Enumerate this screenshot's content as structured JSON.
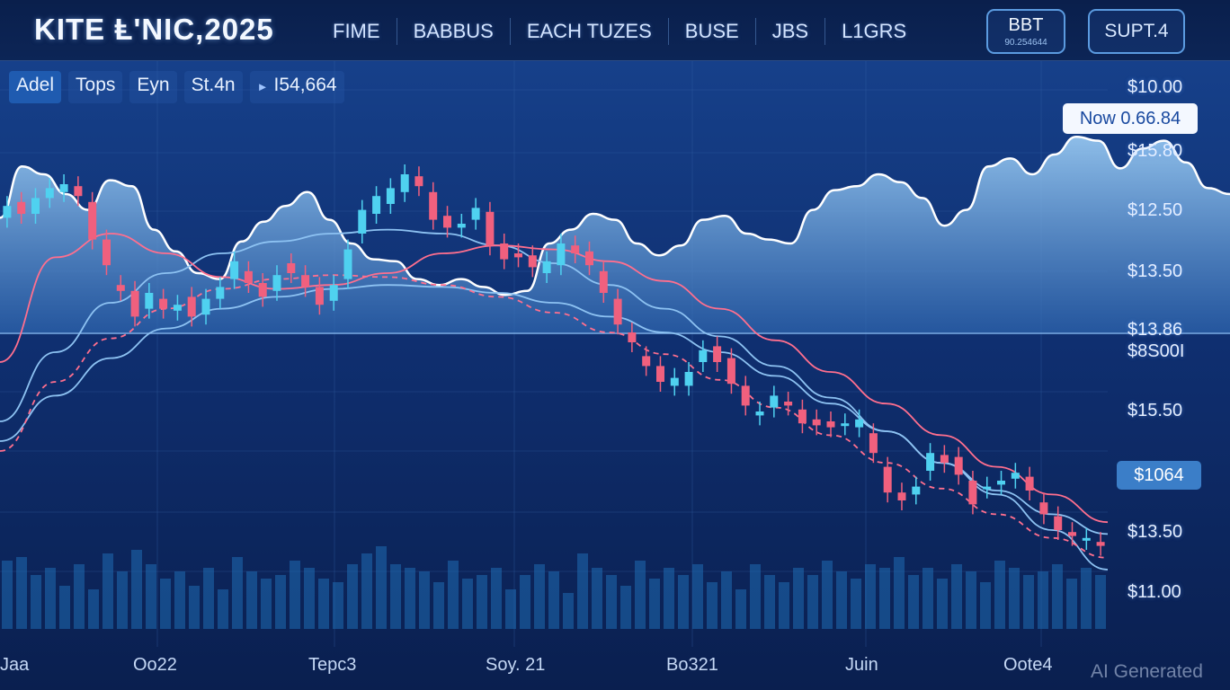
{
  "header": {
    "brand": "KITE Ⱡ'NIC,2025",
    "nav": [
      "FIME",
      "BABBUS",
      "EACH TUZES",
      "BUSE",
      "JBS",
      "L1GRS"
    ],
    "btn_bbt": {
      "label": "BBT",
      "sub": "90.254644"
    },
    "btn_supt": "SUPT.4"
  },
  "toolbar": {
    "timeframes": [
      "Adel",
      "Tops",
      "Eyn",
      "St.4n"
    ],
    "ticker_value": "I54,664"
  },
  "badges": {
    "now": "Now 0.66.84",
    "price": "$1064"
  },
  "watermark": "AI Generated",
  "colors": {
    "background": "#0b2150",
    "up_candle": "#4fd1f0",
    "down_candle": "#f0607e",
    "area_line": "#ffffff",
    "ma_blue": "#8dc2f2",
    "ma_pink": "#ff6f8e",
    "volume": "#1f6cb3"
  },
  "chart_data": {
    "type": "candlestick",
    "title": "",
    "xlabel": "",
    "ylabel": "",
    "y_tick_labels": [
      "$10.00",
      "$15.80",
      "$12.50",
      "$13.50",
      "$13.86",
      "$8S00I",
      "$15.50",
      "$13.50",
      "$11.00"
    ],
    "x_tick_labels": [
      "Jaa",
      "Oo22",
      "Tepc3",
      "Soy. 21",
      "Bo321",
      "Juin",
      "Oote4"
    ],
    "ylim": [
      0,
      100
    ],
    "grid": true,
    "area_series": [
      58,
      84,
      80,
      70,
      62,
      77,
      74,
      52,
      41,
      30,
      27,
      46,
      56,
      64,
      71,
      57,
      45,
      37,
      36,
      27,
      24,
      27,
      23,
      19,
      21,
      45,
      52,
      60,
      57,
      45,
      39,
      44,
      57,
      59,
      50,
      47,
      45,
      62,
      72,
      74,
      80,
      76,
      68,
      54,
      62,
      84,
      88,
      80,
      90,
      99,
      97,
      83,
      93,
      97,
      86,
      73,
      70
    ],
    "candles": [
      {
        "o": 58,
        "c": 64
      },
      {
        "o": 66,
        "c": 60
      },
      {
        "o": 60,
        "c": 68
      },
      {
        "o": 68,
        "c": 73
      },
      {
        "o": 71,
        "c": 75
      },
      {
        "o": 74,
        "c": 69
      },
      {
        "o": 66,
        "c": 47
      },
      {
        "o": 47,
        "c": 34
      },
      {
        "o": 24,
        "c": 21
      },
      {
        "o": 21,
        "c": 8
      },
      {
        "o": 12,
        "c": 20
      },
      {
        "o": 17,
        "c": 12
      },
      {
        "o": 11,
        "c": 14
      },
      {
        "o": 18,
        "c": 8
      },
      {
        "o": 9,
        "c": 17
      },
      {
        "o": 17,
        "c": 23
      },
      {
        "o": 27,
        "c": 36
      },
      {
        "o": 31,
        "c": 25
      },
      {
        "o": 25,
        "c": 18
      },
      {
        "o": 21,
        "c": 29
      },
      {
        "o": 35,
        "c": 30
      },
      {
        "o": 29,
        "c": 23
      },
      {
        "o": 23,
        "c": 14
      },
      {
        "o": 16,
        "c": 24
      },
      {
        "o": 27,
        "c": 42
      },
      {
        "o": 50,
        "c": 62
      },
      {
        "o": 60,
        "c": 69
      },
      {
        "o": 65,
        "c": 73
      },
      {
        "o": 71,
        "c": 80
      },
      {
        "o": 79,
        "c": 74
      },
      {
        "o": 71,
        "c": 57
      },
      {
        "o": 59,
        "c": 53
      },
      {
        "o": 53,
        "c": 55
      },
      {
        "o": 57,
        "c": 63
      },
      {
        "o": 61,
        "c": 44
      },
      {
        "o": 45,
        "c": 37
      },
      {
        "o": 40,
        "c": 38
      },
      {
        "o": 39,
        "c": 33
      },
      {
        "o": 30,
        "c": 36
      },
      {
        "o": 34,
        "c": 45
      },
      {
        "o": 44,
        "c": 40
      },
      {
        "o": 41,
        "c": 34
      },
      {
        "o": 31,
        "c": 20
      },
      {
        "o": 17,
        "c": 4
      },
      {
        "o": 0,
        "c": -5
      },
      {
        "o": -12,
        "c": -17
      },
      {
        "o": -17,
        "c": -25
      },
      {
        "o": -27,
        "c": -23
      },
      {
        "o": -27,
        "c": -20
      },
      {
        "o": -15,
        "c": -9
      },
      {
        "o": -7,
        "c": -15
      },
      {
        "o": -13,
        "c": -26
      },
      {
        "o": -27,
        "c": -37
      },
      {
        "o": -42,
        "c": -40
      },
      {
        "o": -38,
        "c": -32
      },
      {
        "o": -35,
        "c": -37
      },
      {
        "o": -39,
        "c": -46
      },
      {
        "o": -44,
        "c": -47
      },
      {
        "o": -45,
        "c": -48
      },
      {
        "o": -47,
        "c": -46
      },
      {
        "o": -48,
        "c": -44
      },
      {
        "o": -51,
        "c": -61
      },
      {
        "o": -68,
        "c": -81
      },
      {
        "o": -81,
        "c": -85
      },
      {
        "o": -82,
        "c": -78
      },
      {
        "o": -70,
        "c": -61
      },
      {
        "o": -62,
        "c": -66
      },
      {
        "o": -63,
        "c": -72
      },
      {
        "o": -75,
        "c": -87
      },
      {
        "o": -79,
        "c": -78
      },
      {
        "o": -77,
        "c": -75
      },
      {
        "o": -74,
        "c": -71
      },
      {
        "o": -73,
        "c": -80
      },
      {
        "o": -86,
        "c": -92
      },
      {
        "o": -93,
        "c": -100
      },
      {
        "o": -101,
        "c": -103
      },
      {
        "o": -105,
        "c": -104
      },
      {
        "o": -106,
        "c": -108
      }
    ],
    "moving_averages": [
      {
        "color": "blue",
        "values": [
          -55,
          -32,
          -13,
          2,
          12,
          18,
          22,
          24,
          23,
          20,
          15,
          8,
          0,
          -10,
          -22,
          -36,
          -50,
          -66,
          -82,
          -100,
          -120
        ]
      },
      {
        "color": "blue",
        "values": [
          -45,
          -10,
          15,
          30,
          40,
          46,
          50,
          52,
          50,
          44,
          35,
          24,
          12,
          -2,
          -17,
          -33,
          -50,
          -66,
          -80,
          -92,
          -102
        ]
      },
      {
        "color": "pink",
        "values": [
          -15,
          38,
          50,
          40,
          28,
          22,
          24,
          30,
          40,
          44,
          42,
          36,
          26,
          12,
          -4,
          -20,
          -36,
          -52,
          -68,
          -82,
          -96
        ]
      },
      {
        "color": "pink",
        "values": [
          -60,
          -25,
          -3,
          12,
          22,
          27,
          29,
          28,
          24,
          18,
          10,
          0,
          -11,
          -24,
          -38,
          -52,
          -66,
          -79,
          -92,
          -104,
          -114
        ]
      }
    ],
    "volume": [
      38,
      40,
      30,
      34,
      24,
      36,
      22,
      42,
      32,
      44,
      36,
      28,
      32,
      24,
      34,
      22,
      40,
      32,
      28,
      30,
      38,
      34,
      28,
      26,
      36,
      42,
      46,
      36,
      34,
      32,
      26,
      38,
      28,
      30,
      34,
      22,
      30,
      36,
      32,
      20,
      42,
      34,
      30,
      24,
      38,
      28,
      34,
      30,
      36,
      26,
      32,
      22,
      36,
      30,
      26,
      34,
      30,
      38,
      32,
      28,
      36,
      34,
      40,
      30,
      34,
      28,
      36,
      32,
      26,
      38,
      34,
      30,
      32,
      36,
      28,
      34,
      30
    ]
  }
}
